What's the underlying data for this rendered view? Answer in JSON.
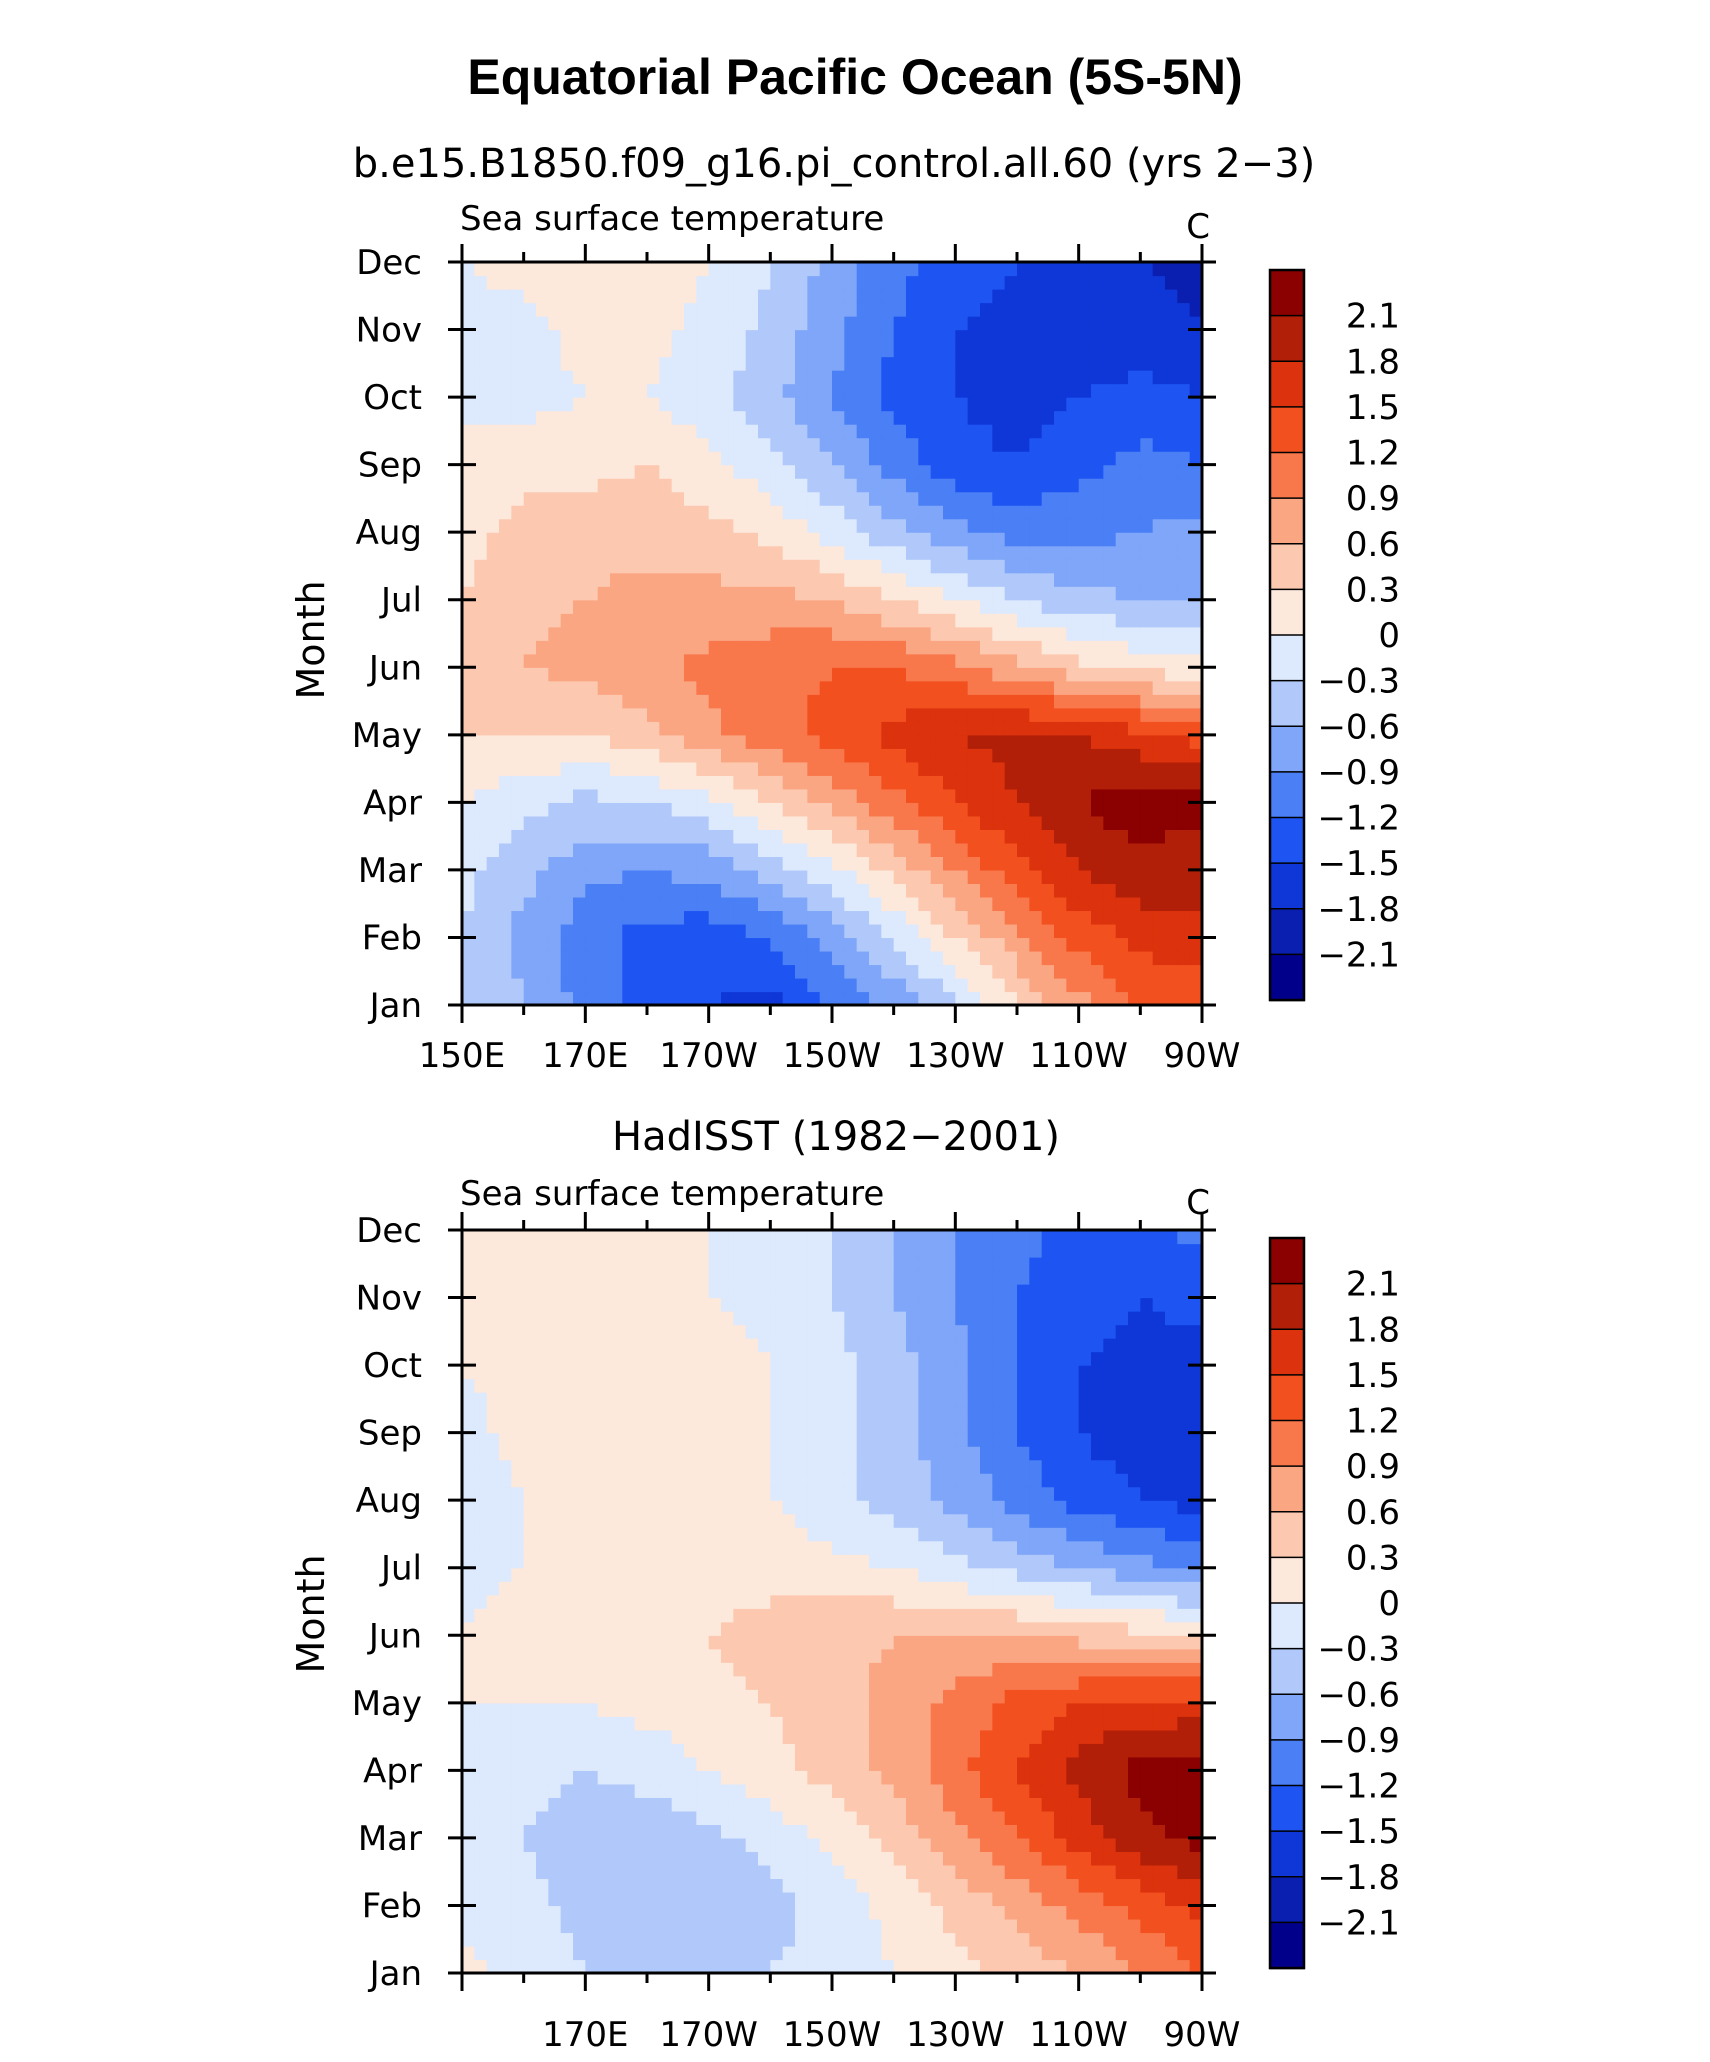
{
  "figure": {
    "title": "Equatorial Pacific Ocean (5S-5N)"
  },
  "chart_data": [
    {
      "type": "heatmap",
      "subtitle": "b.e15.B1850.f09_g16.pi_control.all.60 (yrs 2−3)",
      "variable": "Sea surface temperature",
      "units": "C",
      "ylabel": "Month",
      "x_ticks": [
        "150E",
        "170E",
        "170W",
        "150W",
        "130W",
        "110W",
        "90W"
      ],
      "y_ticks": [
        "Jan",
        "Feb",
        "Mar",
        "Apr",
        "May",
        "Jun",
        "Jul",
        "Aug",
        "Sep",
        "Oct",
        "Nov",
        "Dec"
      ],
      "x_columns": [
        "150E",
        "160E",
        "170E",
        "180",
        "170W",
        "160W",
        "150W",
        "140W",
        "130W",
        "120W",
        "110W",
        "100W",
        "90W"
      ],
      "values": [
        [
          -0.3,
          -0.6,
          -1.0,
          -1.3,
          -1.5,
          -1.6,
          -1.2,
          -0.8,
          -0.4,
          0.3,
          0.8,
          1.2,
          1.3
        ],
        [
          -0.3,
          -0.7,
          -1.1,
          -1.3,
          -1.4,
          -1.2,
          -0.8,
          -0.3,
          0.3,
          0.8,
          1.3,
          1.6,
          1.7
        ],
        [
          -0.2,
          -0.5,
          -0.8,
          -0.9,
          -0.8,
          -0.5,
          -0.1,
          0.4,
          0.9,
          1.4,
          1.8,
          2.0,
          1.9
        ],
        [
          0.0,
          -0.2,
          -0.4,
          -0.3,
          -0.1,
          0.3,
          0.7,
          1.1,
          1.5,
          1.8,
          2.1,
          2.3,
          2.2
        ],
        [
          0.3,
          0.3,
          0.3,
          0.5,
          0.8,
          1.1,
          1.3,
          1.6,
          1.8,
          1.9,
          1.8,
          1.6,
          1.4
        ],
        [
          0.4,
          0.6,
          0.7,
          0.8,
          1.0,
          1.1,
          1.2,
          1.2,
          1.0,
          0.7,
          0.4,
          0.2,
          0.1
        ],
        [
          0.3,
          0.5,
          0.6,
          0.7,
          0.7,
          0.7,
          0.6,
          0.3,
          0.0,
          -0.3,
          -0.5,
          -0.6,
          -0.6
        ],
        [
          0.2,
          0.4,
          0.5,
          0.5,
          0.4,
          0.2,
          -0.1,
          -0.5,
          -0.8,
          -1.0,
          -1.0,
          -0.9,
          -0.8
        ],
        [
          0.1,
          0.2,
          0.2,
          0.3,
          0.1,
          -0.2,
          -0.6,
          -1.0,
          -1.4,
          -1.5,
          -1.3,
          -1.1,
          -1.2
        ],
        [
          -0.1,
          -0.1,
          0.0,
          0.0,
          -0.2,
          -0.5,
          -0.9,
          -1.3,
          -1.5,
          -1.6,
          -1.5,
          -1.4,
          -1.5
        ],
        [
          -0.1,
          -0.1,
          0.1,
          0.1,
          -0.1,
          -0.4,
          -0.8,
          -1.2,
          -1.5,
          -1.6,
          -1.6,
          -1.7,
          -1.8
        ],
        [
          0.0,
          0.1,
          0.2,
          0.3,
          0.0,
          -0.3,
          -0.7,
          -1.1,
          -1.4,
          -1.5,
          -1.6,
          -1.8,
          -1.9
        ]
      ],
      "xlim": [
        "150E",
        "90W"
      ],
      "colorbar_labels": [
        "2.1",
        "1.8",
        "1.5",
        "1.2",
        "0.9",
        "0.6",
        "0.3",
        "0",
        "−0.3",
        "−0.6",
        "−0.9",
        "−1.2",
        "−1.5",
        "−1.8",
        "−2.1"
      ]
    },
    {
      "type": "heatmap",
      "subtitle": "HadISST (1982−2001)",
      "variable": "Sea surface temperature",
      "units": "C",
      "ylabel": "Month",
      "x_ticks": [
        "170E",
        "170W",
        "150W",
        "130W",
        "110W",
        "90W"
      ],
      "y_ticks": [
        "Jan",
        "Feb",
        "Mar",
        "Apr",
        "May",
        "Jun",
        "Jul",
        "Aug",
        "Sep",
        "Oct",
        "Nov",
        "Dec"
      ],
      "x_columns": [
        "150E",
        "160E",
        "170E",
        "180",
        "170W",
        "160W",
        "150W",
        "140W",
        "130W",
        "120W",
        "110W",
        "100W",
        "90W"
      ],
      "values": [
        [
          0.1,
          -0.1,
          -0.3,
          -0.4,
          -0.4,
          -0.3,
          -0.2,
          0.0,
          0.2,
          0.4,
          0.6,
          0.9,
          1.2
        ],
        [
          -0.1,
          -0.2,
          -0.4,
          -0.5,
          -0.5,
          -0.4,
          -0.2,
          0.1,
          0.4,
          0.7,
          1.0,
          1.3,
          1.6
        ],
        [
          -0.2,
          -0.3,
          -0.5,
          -0.5,
          -0.4,
          -0.2,
          0.1,
          0.4,
          0.8,
          1.2,
          1.6,
          2.0,
          2.2
        ],
        [
          -0.1,
          -0.2,
          -0.3,
          -0.2,
          0.0,
          0.2,
          0.4,
          0.7,
          1.1,
          1.5,
          1.9,
          2.2,
          2.3
        ],
        [
          0.0,
          0.0,
          0.0,
          0.1,
          0.2,
          0.3,
          0.5,
          0.7,
          1.0,
          1.3,
          1.5,
          1.6,
          1.6
        ],
        [
          0.0,
          0.1,
          0.1,
          0.2,
          0.3,
          0.4,
          0.5,
          0.6,
          0.6,
          0.6,
          0.5,
          0.4,
          0.3
        ],
        [
          -0.1,
          0.0,
          0.1,
          0.1,
          0.2,
          0.2,
          0.1,
          0.0,
          -0.2,
          -0.4,
          -0.6,
          -0.8,
          -1.0
        ],
        [
          -0.2,
          0.0,
          0.1,
          0.1,
          0.1,
          0.0,
          -0.2,
          -0.4,
          -0.7,
          -1.0,
          -1.3,
          -1.5,
          -1.6
        ],
        [
          -0.1,
          0.1,
          0.2,
          0.3,
          0.2,
          0.0,
          -0.2,
          -0.5,
          -0.8,
          -1.2,
          -1.5,
          -1.7,
          -1.7
        ],
        [
          0.0,
          0.1,
          0.1,
          0.2,
          0.1,
          0.0,
          -0.2,
          -0.5,
          -0.8,
          -1.2,
          -1.5,
          -1.6,
          -1.6
        ],
        [
          0.0,
          0.1,
          0.1,
          0.1,
          0.0,
          -0.1,
          -0.3,
          -0.6,
          -0.9,
          -1.2,
          -1.4,
          -1.5,
          -1.4
        ],
        [
          0.0,
          0.1,
          0.1,
          0.1,
          0.0,
          -0.1,
          -0.3,
          -0.6,
          -0.9,
          -1.1,
          -1.3,
          -1.3,
          -1.1
        ]
      ],
      "xlim": [
        "150E",
        "90W"
      ],
      "colorbar_labels": [
        "2.1",
        "1.8",
        "1.5",
        "1.2",
        "0.9",
        "0.6",
        "0.3",
        "0",
        "−0.3",
        "−0.6",
        "−0.9",
        "−1.2",
        "−1.5",
        "−1.8",
        "−2.1"
      ]
    }
  ],
  "palette": [
    "#00008b",
    "#0a1fb0",
    "#0f37d8",
    "#1e55f2",
    "#4a7ff5",
    "#7fa6f8",
    "#b0c9fa",
    "#dde9fc",
    "#fde8dc",
    "#fcc9b0",
    "#fba683",
    "#f8784c",
    "#f2501f",
    "#dc320d",
    "#b21f08",
    "#8b0000"
  ]
}
